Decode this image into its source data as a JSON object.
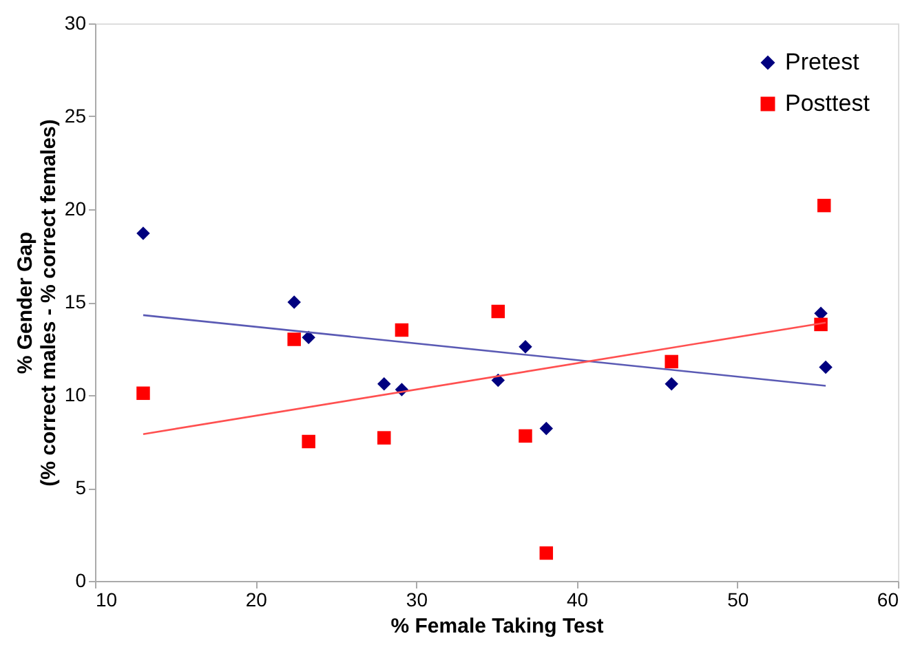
{
  "chart_data": {
    "type": "scatter",
    "xlabel": "% Female Taking Test",
    "ylabel": "% Gender Gap\n(% correct males - % correct females)",
    "xlim": [
      10,
      60
    ],
    "xticks": [
      10,
      20,
      30,
      40,
      50,
      60
    ],
    "ylim": [
      0,
      30
    ],
    "yticks": [
      0,
      5,
      10,
      15,
      20,
      25,
      30
    ],
    "grid": false,
    "legend": "top right",
    "series": [
      {
        "name": "Pretest",
        "color": "#00007f",
        "marker": "diamond",
        "x": [
          13,
          22.4,
          23.3,
          28,
          29.1,
          35.1,
          36.8,
          38.1,
          45.9,
          55.2,
          55.5
        ],
        "values": [
          18.7,
          15.0,
          13.1,
          10.6,
          10.3,
          10.8,
          12.6,
          8.2,
          10.6,
          14.4,
          11.5
        ]
      },
      {
        "name": "Posttest",
        "color": "#ff0000",
        "marker": "square",
        "x": [
          13,
          22.4,
          23.3,
          28,
          29.1,
          35.1,
          36.8,
          38.1,
          45.9,
          55.2,
          55.4
        ],
        "values": [
          10.1,
          13.0,
          7.5,
          7.7,
          13.5,
          14.5,
          7.8,
          1.5,
          11.8,
          13.8,
          20.2
        ]
      },
      {
        "type": "line",
        "color": "#5a5ab4",
        "marker": "none",
        "x": [
          13,
          55.5
        ],
        "values": [
          14.3,
          10.5
        ]
      },
      {
        "type": "line",
        "color": "#ff5050",
        "marker": "none",
        "x": [
          13,
          55.5
        ],
        "values": [
          7.9,
          13.9
        ]
      }
    ]
  }
}
